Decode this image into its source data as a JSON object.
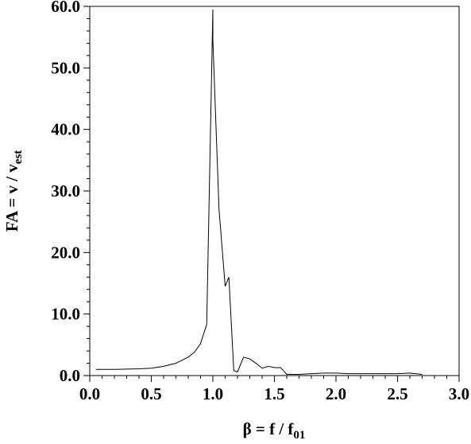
{
  "chart_data": {
    "type": "line",
    "xlabel": "β = f / f",
    "xlabel_sub": "01",
    "ylabel": "FA = v / v",
    "ylabel_sub": "est",
    "x": [
      0.05,
      0.1,
      0.2,
      0.3,
      0.4,
      0.5,
      0.6,
      0.7,
      0.8,
      0.85,
      0.9,
      0.95,
      1.0,
      1.0,
      1.05,
      1.1,
      1.13,
      1.17,
      1.2,
      1.25,
      1.3,
      1.35,
      1.4,
      1.45,
      1.5,
      1.55,
      1.6,
      1.7,
      1.8,
      1.9,
      2.0,
      2.1,
      2.2,
      2.3,
      2.4,
      2.5,
      2.6,
      2.7
    ],
    "series": [
      {
        "color": "#000000",
        "values": [
          1.0,
          1.0,
          1.0,
          1.05,
          1.1,
          1.2,
          1.5,
          2.0,
          3.0,
          3.8,
          5.2,
          8.3,
          59.5,
          54.5,
          27,
          14.5,
          16.0,
          0.8,
          0.6,
          3.0,
          2.7,
          2.0,
          1.2,
          1.5,
          1.3,
          1.3,
          0.2,
          0.2,
          0.3,
          0.4,
          0.4,
          0.3,
          0.3,
          0.3,
          0.3,
          0.3,
          0.4,
          0.2
        ]
      }
    ],
    "xlim": [
      0,
      3
    ],
    "ylim": [
      0,
      60
    ],
    "xticks": [
      {
        "value": 0,
        "label": "0.0"
      },
      0.5,
      {
        "value": 1,
        "label": "1.0"
      },
      1.5,
      {
        "value": 2,
        "label": "2.0"
      },
      2.5,
      {
        "value": 3,
        "label": "3.0"
      }
    ],
    "yticks": [
      {
        "value": 0,
        "label": "0.0"
      },
      {
        "value": 10,
        "label": "10.0"
      },
      {
        "value": 20,
        "label": "20.0"
      },
      {
        "value": 30,
        "label": "30.0"
      },
      {
        "value": 40,
        "label": "40.0"
      },
      {
        "value": 50,
        "label": "50.0"
      },
      {
        "value": 60,
        "label": "60.0"
      }
    ],
    "xminorticks": [
      0.1,
      0.2,
      0.3,
      0.4,
      0.6,
      0.7,
      0.8,
      0.9,
      1.1,
      1.2,
      1.3,
      1.4,
      1.6,
      1.7,
      1.8,
      1.9,
      2.1,
      2.2,
      2.3,
      2.4,
      2.6,
      2.7,
      2.8,
      2.9
    ],
    "yminorticks": [
      2,
      4,
      6,
      8,
      12,
      14,
      16,
      18,
      22,
      24,
      26,
      28,
      32,
      34,
      36,
      38,
      42,
      44,
      46,
      48,
      52,
      54,
      56,
      58
    ]
  }
}
